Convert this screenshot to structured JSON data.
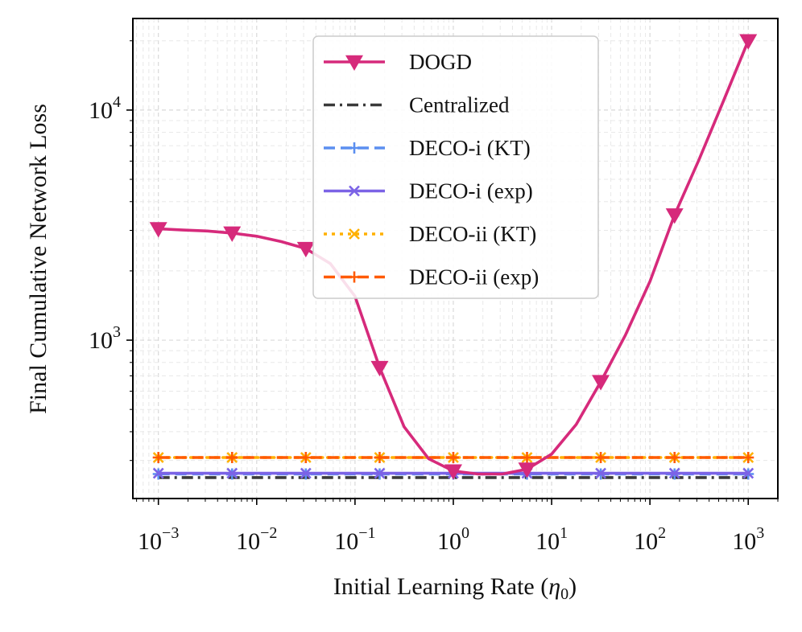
{
  "chart_data": {
    "type": "line",
    "title": "",
    "xlabel": "Initial Learning Rate",
    "xlabel_symbol": "η",
    "xlabel_subscript": "0",
    "ylabel": "Final Cumulative Network Loss",
    "xscale": "log",
    "yscale": "log",
    "xlim": [
      0.00055,
      2000
    ],
    "ylim": [
      205,
      25000
    ],
    "grid": true,
    "legend_position": "top-center",
    "x_ticks": [
      {
        "base": "10",
        "exp": "−3",
        "value": 0.001
      },
      {
        "base": "10",
        "exp": "−2",
        "value": 0.01
      },
      {
        "base": "10",
        "exp": "−1",
        "value": 0.1
      },
      {
        "base": "10",
        "exp": "0",
        "value": 1
      },
      {
        "base": "10",
        "exp": "1",
        "value": 10
      },
      {
        "base": "10",
        "exp": "2",
        "value": 100
      },
      {
        "base": "10",
        "exp": "3",
        "value": 1000
      }
    ],
    "y_ticks": [
      {
        "base": "10",
        "exp": "3",
        "value": 1000
      },
      {
        "base": "10",
        "exp": "4",
        "value": 10000
      }
    ],
    "series": [
      {
        "name": "DOGD",
        "color": "#d62a7b",
        "dash": "solid",
        "marker": "triangle-down",
        "x": [
          0.001,
          0.00178,
          0.00316,
          0.00562,
          0.01,
          0.0178,
          0.0316,
          0.0562,
          0.1,
          0.178,
          0.316,
          0.562,
          1,
          1.78,
          3.16,
          5.62,
          10,
          17.8,
          31.6,
          56.2,
          100,
          178,
          316,
          562,
          1000
        ],
        "values": [
          3050,
          3010,
          2980,
          2920,
          2830,
          2680,
          2500,
          2150,
          1550,
          760,
          420,
          305,
          270,
          262,
          262,
          275,
          320,
          430,
          660,
          1050,
          1800,
          3500,
          6100,
          11000,
          20000
        ],
        "marker_indices": [
          0,
          3,
          6,
          9,
          12,
          15,
          18,
          21,
          24
        ]
      },
      {
        "name": "Centralized",
        "color": "#3a3a3a",
        "dash": "dashdot",
        "marker": "none",
        "x": [
          0.001,
          1000
        ],
        "values": [
          253,
          253
        ]
      },
      {
        "name": "DECO-i (KT)",
        "color": "#5b8ff0",
        "dash": "dashed",
        "marker": "plus",
        "x": [
          0.001,
          0.00562,
          0.0316,
          0.178,
          1,
          5.62,
          31.6,
          178,
          1000
        ],
        "values": [
          262,
          262,
          262,
          262,
          262,
          262,
          262,
          262,
          262
        ]
      },
      {
        "name": "DECO-i (exp)",
        "color": "#7b63e6",
        "dash": "solid",
        "marker": "x",
        "x": [
          0.001,
          0.00562,
          0.0316,
          0.178,
          1,
          5.62,
          31.6,
          178,
          1000
        ],
        "values": [
          264,
          264,
          264,
          264,
          264,
          264,
          264,
          264,
          264
        ]
      },
      {
        "name": "DECO-ii (KT)",
        "color": "#ffb000",
        "dash": "dotted",
        "marker": "x",
        "x": [
          0.001,
          0.00562,
          0.0316,
          0.178,
          1,
          5.62,
          31.6,
          178,
          1000
        ],
        "values": [
          309,
          309,
          309,
          309,
          309,
          309,
          309,
          309,
          309
        ]
      },
      {
        "name": "DECO-ii (exp)",
        "color": "#ff5a00",
        "dash": "dashed",
        "marker": "plus",
        "x": [
          0.001,
          0.00562,
          0.0316,
          0.178,
          1,
          5.62,
          31.6,
          178,
          1000
        ],
        "values": [
          309,
          309,
          309,
          309,
          309,
          309,
          309,
          309,
          309
        ]
      }
    ]
  }
}
